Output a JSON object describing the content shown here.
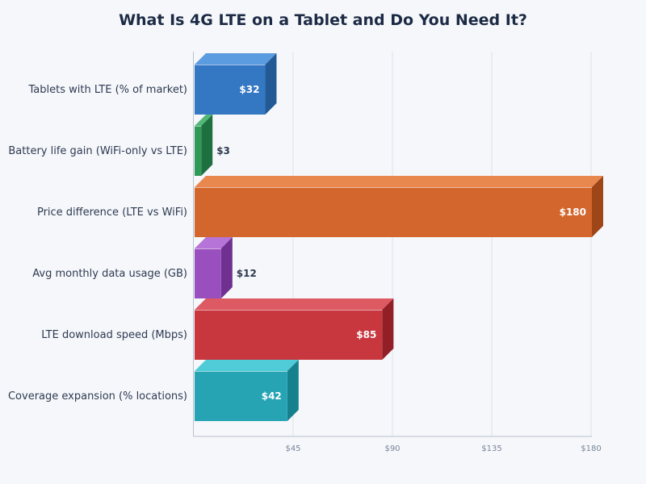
{
  "chart_data": {
    "type": "bar",
    "orientation": "horizontal",
    "title": "What Is 4G LTE on a Tablet and Do You Need It?",
    "xlabel": "",
    "ylabel": "",
    "xlim": [
      0,
      180
    ],
    "x_ticks": [
      45,
      90,
      135,
      180
    ],
    "x_tick_labels": [
      "$45",
      "$90",
      "$135",
      "$180"
    ],
    "grid": "vertical",
    "categories": [
      "Tablets with LTE (% of market)",
      "Battery life gain (WiFi-only vs LTE)",
      "Price difference (LTE vs WiFi)",
      "Avg monthly data usage (GB)",
      "LTE download speed (Mbps)",
      "Coverage expansion (% locations)"
    ],
    "values": [
      32,
      3,
      180,
      12,
      85,
      42
    ],
    "value_labels": [
      "$32",
      "$3",
      "$180",
      "$12",
      "$85",
      "$42"
    ],
    "colors": [
      {
        "front": "#3478c4",
        "top": "#5b9be0",
        "side": "#235a96"
      },
      {
        "front": "#2f9958",
        "top": "#52b877",
        "side": "#1f7040"
      },
      {
        "front": "#d3662c",
        "top": "#e8884f",
        "side": "#9e4618"
      },
      {
        "front": "#9a4fbe",
        "top": "#b774d8",
        "side": "#6f3090"
      },
      {
        "front": "#c8363e",
        "top": "#de5a62",
        "side": "#921e26"
      },
      {
        "front": "#26a4b4",
        "top": "#4fccd8",
        "side": "#17808d"
      }
    ]
  }
}
